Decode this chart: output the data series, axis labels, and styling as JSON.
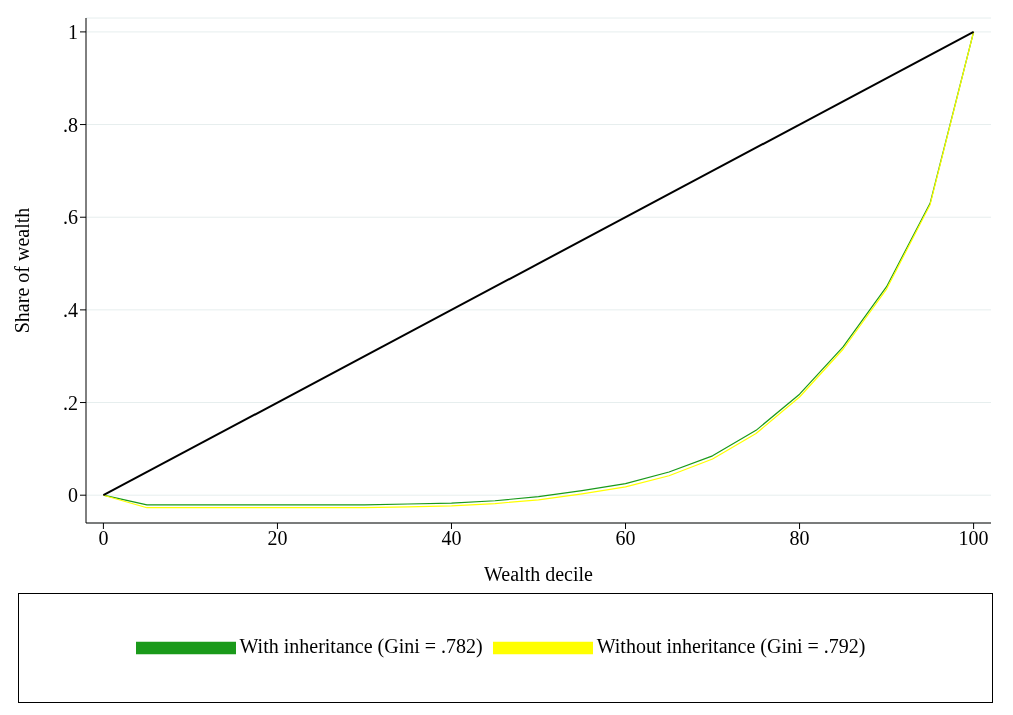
{
  "chart_data": {
    "type": "line",
    "xlabel": "Wealth decile",
    "ylabel": "Share of wealth",
    "x": [
      0,
      5,
      10,
      15,
      20,
      25,
      30,
      35,
      40,
      45,
      50,
      55,
      60,
      65,
      70,
      75,
      80,
      85,
      90,
      95,
      100
    ],
    "series": [
      {
        "name": "With inheritance (Gini = .782)",
        "color": "#1a9a1a",
        "values": [
          0,
          -0.021,
          -0.021,
          -0.021,
          -0.021,
          -0.021,
          -0.021,
          -0.019,
          -0.017,
          -0.012,
          -0.003,
          0.01,
          0.025,
          0.05,
          0.085,
          0.14,
          0.218,
          0.32,
          0.45,
          0.63,
          1
        ]
      },
      {
        "name": "Without inheritance (Gini = .792)",
        "color": "#ffff00",
        "values": [
          0,
          -0.027,
          -0.027,
          -0.027,
          -0.027,
          -0.027,
          -0.027,
          -0.025,
          -0.023,
          -0.018,
          -0.01,
          0.003,
          0.018,
          0.042,
          0.078,
          0.133,
          0.212,
          0.315,
          0.445,
          0.627,
          1
        ]
      },
      {
        "color": "#000000",
        "x": [
          0,
          100
        ],
        "values": [
          0,
          1
        ]
      }
    ],
    "xlim": [
      -2,
      102
    ],
    "xticks": [
      0,
      20,
      40,
      60,
      80,
      100
    ],
    "ylim": [
      -0.06,
      1.03
    ],
    "yticks": [
      0,
      {
        "value": 0.2,
        "label": ".2"
      },
      {
        "value": 0.4,
        "label": ".4"
      },
      {
        "value": 0.6,
        "label": ".6"
      },
      {
        "value": 0.8,
        "label": ".8"
      },
      1
    ],
    "grid": "y",
    "legend": "bottom",
    "marker": "none",
    "line_style": "solid"
  }
}
